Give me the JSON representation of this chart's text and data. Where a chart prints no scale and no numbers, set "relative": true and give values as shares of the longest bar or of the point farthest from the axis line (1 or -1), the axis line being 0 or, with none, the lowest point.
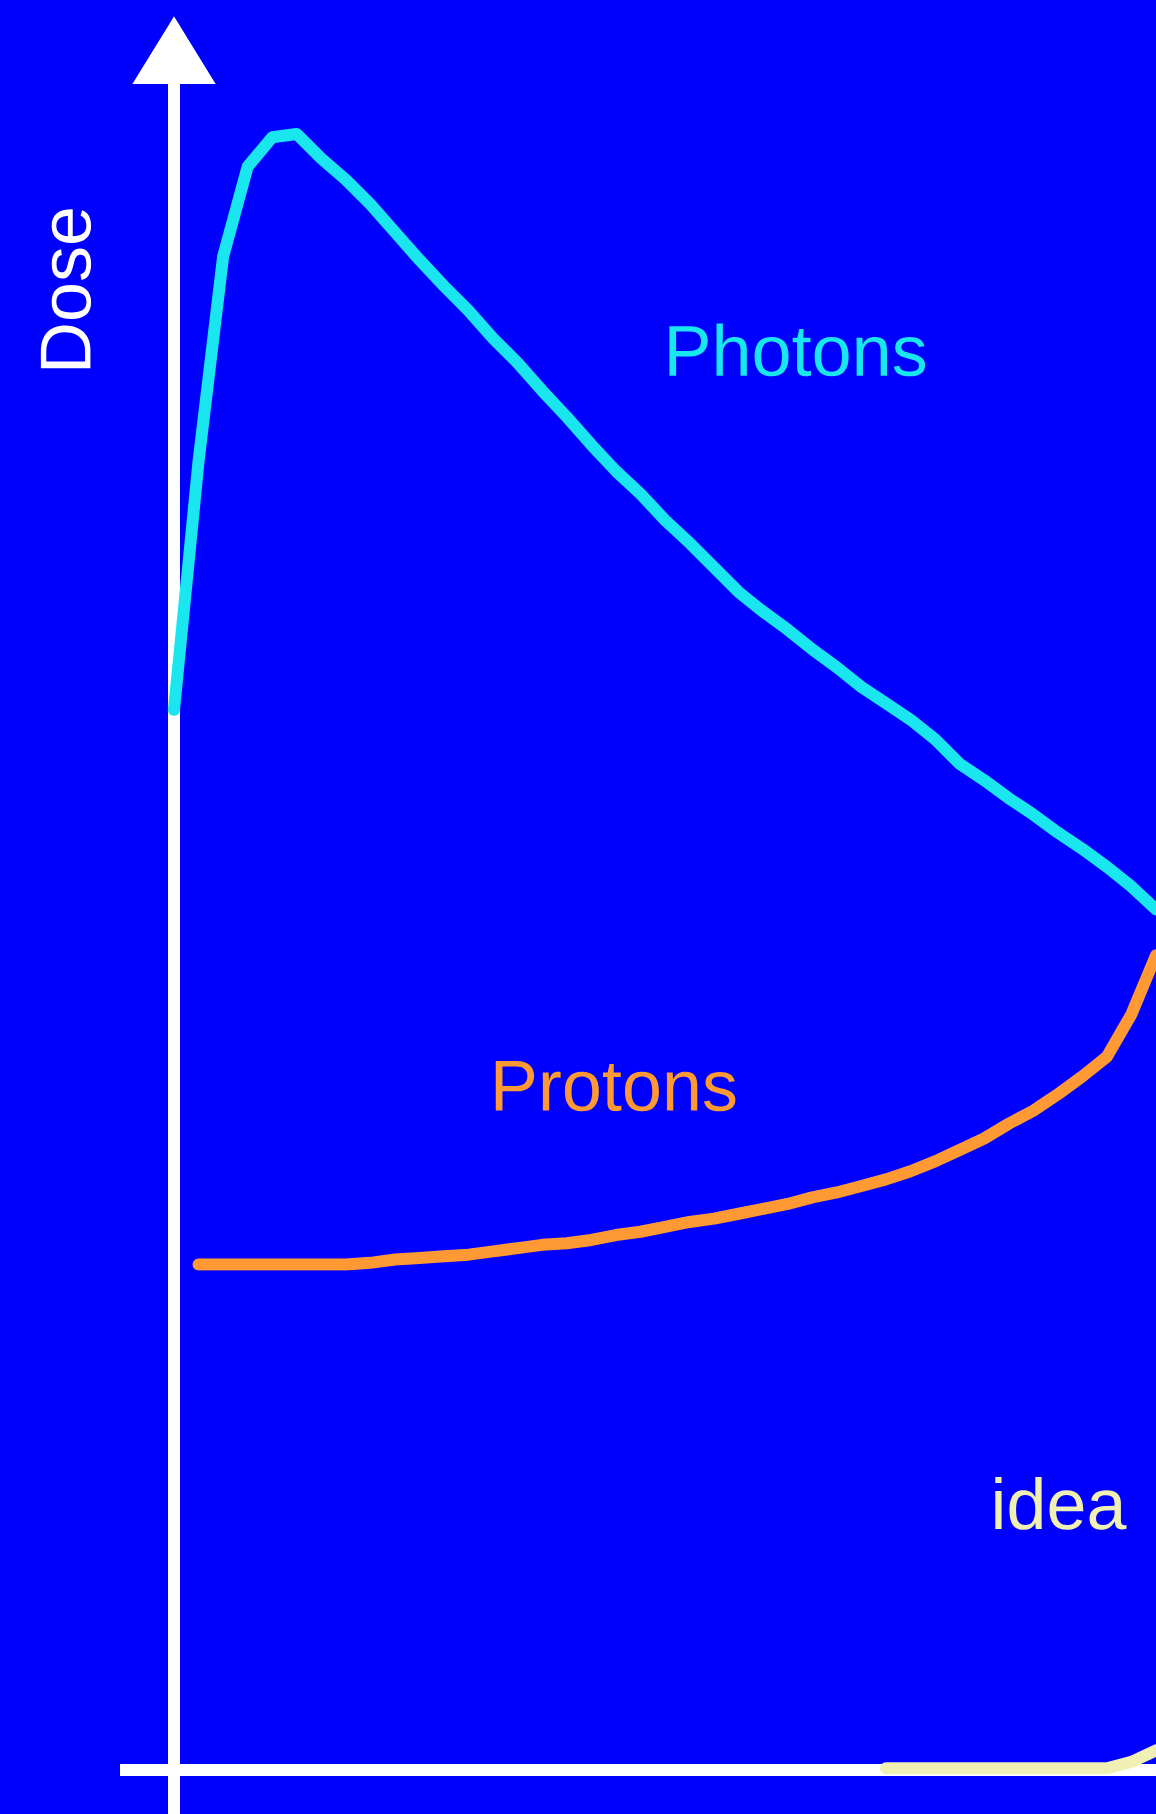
{
  "chart_data": {
    "type": "line",
    "relative": true,
    "ylabel": "Dose",
    "categories": [
      null,
      null,
      null,
      null,
      null,
      null,
      null,
      null,
      null,
      null,
      null,
      null,
      null,
      null,
      null,
      null,
      null,
      null,
      null,
      null,
      null,
      null,
      null,
      null,
      null,
      null,
      null,
      null,
      null,
      null,
      null,
      null,
      null,
      null,
      null,
      null,
      null,
      null,
      null,
      null,
      null
    ],
    "series": [
      {
        "name": "Photons",
        "color": "#1ae6f0",
        "values": [
          0.648,
          0.8,
          0.925,
          0.98,
          0.998,
          1.0,
          0.985,
          0.972,
          0.957,
          0.94,
          0.923,
          0.907,
          0.892,
          0.875,
          0.86,
          0.843,
          0.827,
          0.81,
          0.794,
          0.78,
          0.764,
          0.75,
          0.735,
          0.72,
          0.708,
          0.697,
          0.685,
          0.674,
          0.662,
          0.652,
          0.642,
          0.63,
          0.615,
          0.605,
          0.594,
          0.584,
          0.573,
          0.563,
          0.552,
          0.54,
          0.526
        ]
      },
      {
        "name": "Protons",
        "color": "#ff9933",
        "values": [
          null,
          0.309,
          0.309,
          0.309,
          0.309,
          0.309,
          0.309,
          0.309,
          0.31,
          0.312,
          0.313,
          0.314,
          0.315,
          0.317,
          0.319,
          0.321,
          0.322,
          0.324,
          0.327,
          0.329,
          0.332,
          0.335,
          0.337,
          0.34,
          0.343,
          0.346,
          0.35,
          0.353,
          0.357,
          0.361,
          0.366,
          0.372,
          0.379,
          0.386,
          0.395,
          0.403,
          0.413,
          0.424,
          0.436,
          0.462,
          0.498
        ]
      },
      {
        "name": "idea",
        "color": "#f0f0b4",
        "values": [
          null,
          null,
          null,
          null,
          null,
          null,
          null,
          null,
          null,
          null,
          null,
          null,
          null,
          null,
          null,
          null,
          null,
          null,
          null,
          null,
          null,
          null,
          null,
          null,
          null,
          null,
          null,
          null,
          null,
          0.001,
          0.001,
          0.001,
          0.001,
          0.001,
          0.001,
          0.001,
          0.001,
          0.001,
          0.001,
          0.005,
          0.012
        ]
      }
    ]
  }
}
